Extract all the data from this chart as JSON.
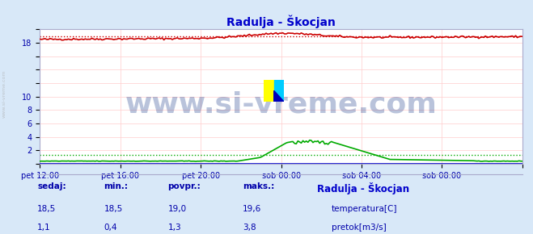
{
  "title": "Radulja - Škocjan",
  "title_color": "#0000cc",
  "bg_color": "#d8e8f8",
  "plot_bg_color": "#ffffff",
  "grid_color": "#ffcccc",
  "border_color": "#aaaacc",
  "xlim": [
    0,
    288
  ],
  "ylim": [
    0,
    20
  ],
  "yticks": [
    0,
    2,
    4,
    6,
    8,
    10,
    12,
    14,
    16,
    18,
    20
  ],
  "ytick_labels": [
    "",
    "2",
    "4",
    "6",
    "8",
    "10",
    "",
    "",
    "",
    "18",
    ""
  ],
  "xtick_positions": [
    0,
    48,
    96,
    144,
    192,
    240,
    288
  ],
  "xtick_labels": [
    "pet 12:00",
    "pet 16:00",
    "pet 20:00",
    "sob 00:00",
    "sob 04:00",
    "sob 08:00",
    ""
  ],
  "temp_color": "#cc0000",
  "flow_color": "#00aa00",
  "blue_line_color": "#0000cc",
  "watermark_text": "www.si-vreme.com",
  "watermark_color": "#1a3a8a",
  "watermark_alpha": 0.3,
  "watermark_fontsize": 26,
  "legend_title": "Radulja - Škocjan",
  "legend_title_color": "#0000cc",
  "footer_color": "#0000aa",
  "temp_avg_value": 19.0,
  "flow_avg_value": 1.3,
  "temp_sedaj": "18,5",
  "temp_min": "18,5",
  "temp_povpr": "19,0",
  "temp_maks": "19,6",
  "flow_sedaj": "1,1",
  "flow_min": "0,4",
  "flow_povpr": "1,3",
  "flow_maks": "3,8"
}
